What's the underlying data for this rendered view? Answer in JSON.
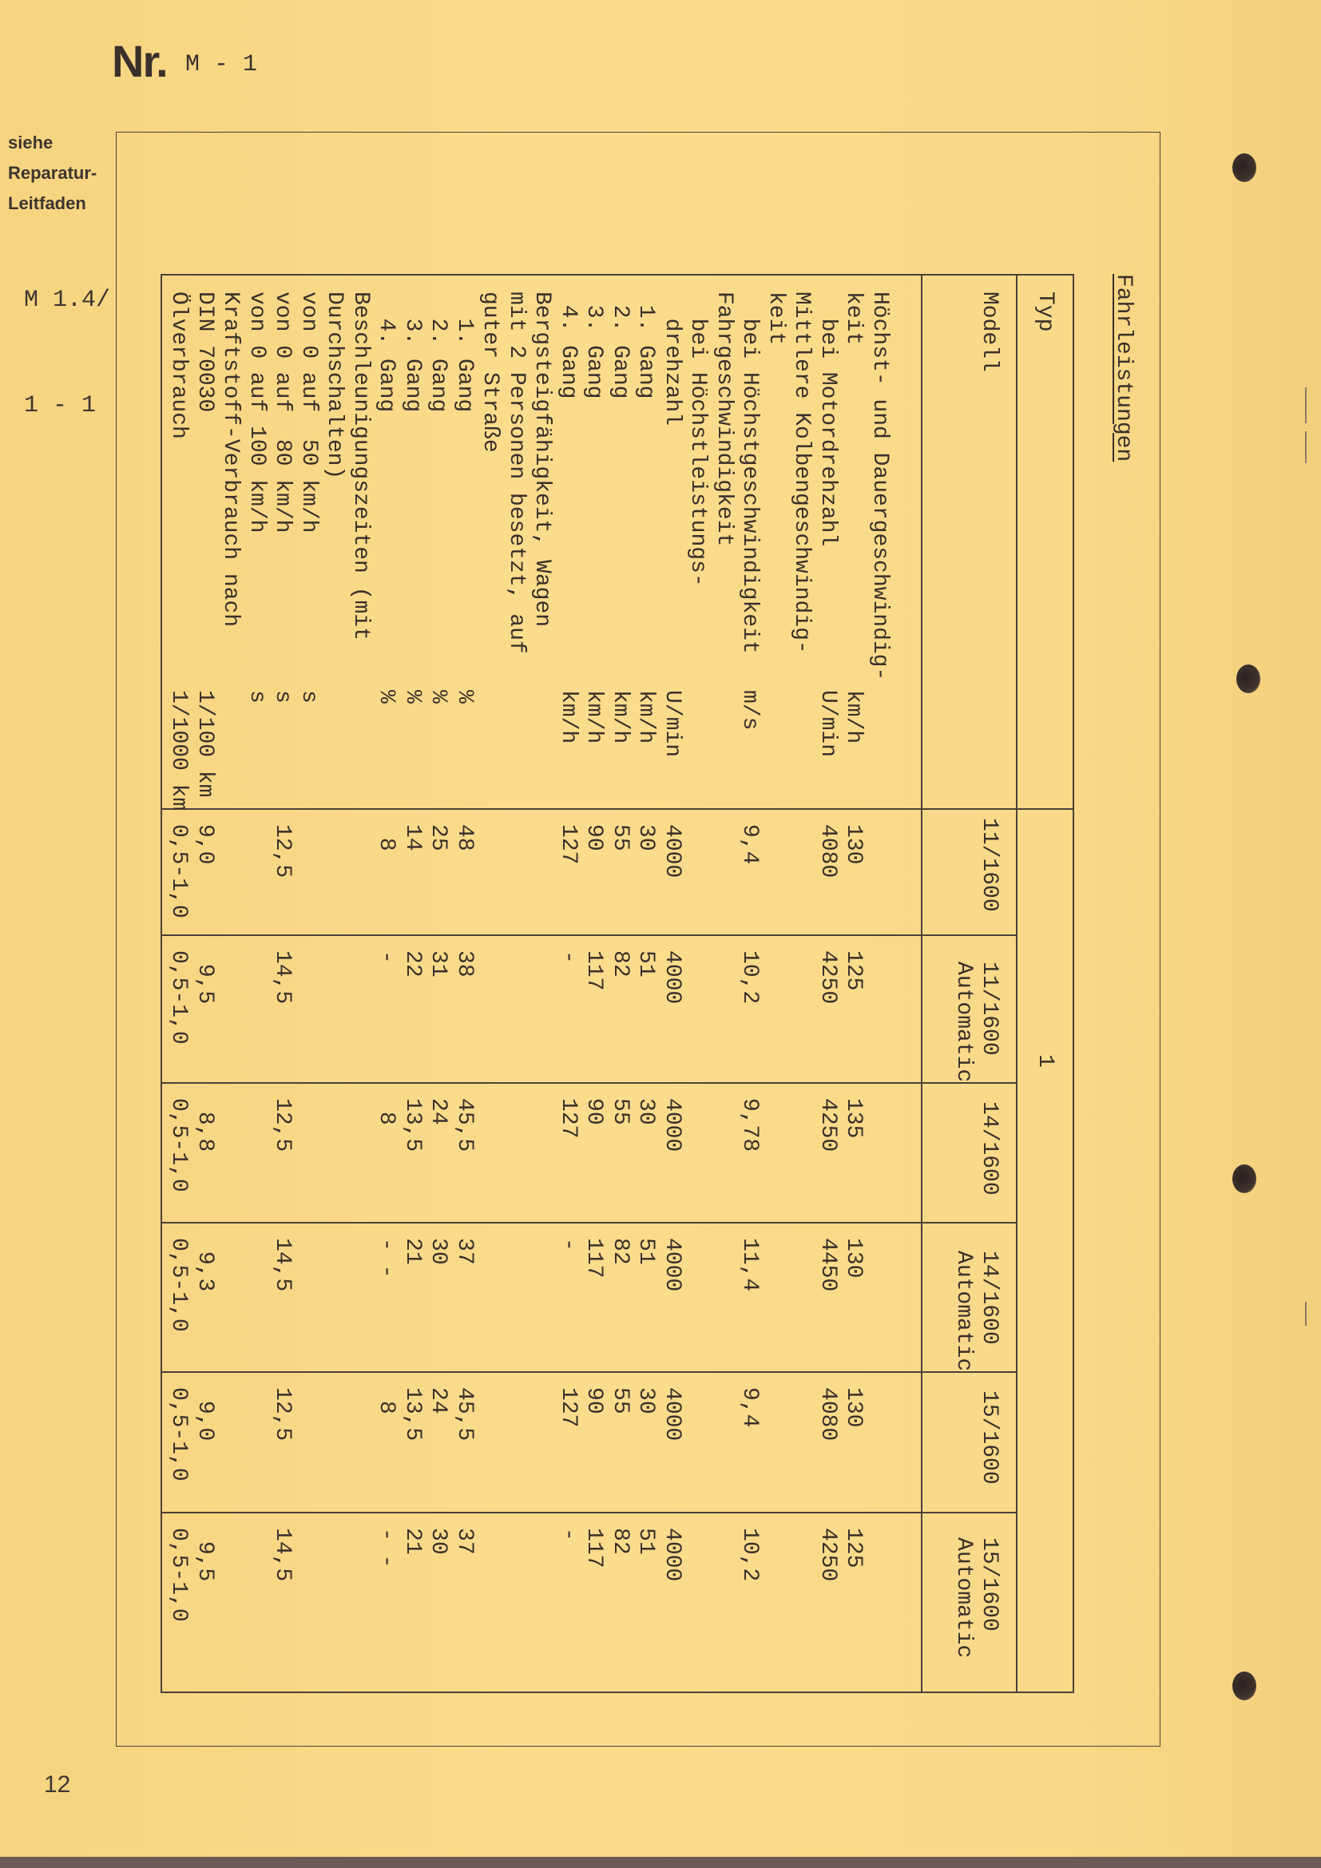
{
  "header": {
    "nr_label": "Nr.",
    "nr_value": "M - 1"
  },
  "side_note": {
    "lines": [
      "siehe",
      "Reparatur-",
      "Leitfaden"
    ],
    "ref_lines": [
      "M 1.4/",
      "1 - 1"
    ]
  },
  "page_number": "12",
  "title": "Fahrleistungen",
  "table": {
    "typ_label": "Typ",
    "typ_value": "1",
    "modell_label": "Modell",
    "models": [
      {
        "line1": "11/1600",
        "line2": ""
      },
      {
        "line1": "11/1600",
        "line2": "Automatic"
      },
      {
        "line1": "14/1600",
        "line2": ""
      },
      {
        "line1": "14/1600",
        "line2": "Automatic"
      },
      {
        "line1": "15/1600",
        "line2": ""
      },
      {
        "line1": "15/1600",
        "line2": "Automatic"
      }
    ],
    "rows": [
      {
        "label": "Höchst- und Dauergeschwindig-",
        "unit": "",
        "values": [
          "",
          "",
          "",
          "",
          "",
          ""
        ]
      },
      {
        "label": "keit",
        "unit": "km/h",
        "values": [
          "130",
          "125",
          "135",
          "130",
          "130",
          "125"
        ]
      },
      {
        "label": "  bei Motordrehzahl",
        "unit": "U/min",
        "values": [
          "4080",
          "4250",
          "4250",
          "4450",
          "4080",
          "4250"
        ]
      },
      {
        "label": "Mittlere Kolbengeschwindig-",
        "unit": "",
        "values": [
          "",
          "",
          "",
          "",
          "",
          ""
        ]
      },
      {
        "label": "keit",
        "unit": "",
        "values": [
          "",
          "",
          "",
          "",
          "",
          ""
        ]
      },
      {
        "label": "  bei Höchstgeschwindigkeit",
        "unit": "m/s",
        "values": [
          "9,4",
          "10,2",
          "9,78",
          "11,4",
          "9,4",
          "10,2"
        ]
      },
      {
        "label": "Fahrgeschwindigkeit",
        "unit": "",
        "values": [
          "",
          "",
          "",
          "",
          "",
          ""
        ]
      },
      {
        "label": "  bei Höchstleistungs-",
        "unit": "",
        "values": [
          "",
          "",
          "",
          "",
          "",
          ""
        ]
      },
      {
        "label": "  drehzahl",
        "unit": "U/min",
        "values": [
          "4000",
          "4000",
          "4000",
          "4000",
          "4000",
          "4000"
        ]
      },
      {
        "label": " 1. Gang",
        "unit": "km/h",
        "values": [
          "30",
          "51",
          "30",
          "51",
          "30",
          "51"
        ]
      },
      {
        "label": " 2. Gang",
        "unit": "km/h",
        "values": [
          "55",
          "82",
          "55",
          "82",
          "55",
          "82"
        ]
      },
      {
        "label": " 3. Gang",
        "unit": "km/h",
        "values": [
          "90",
          "117",
          "90",
          "117",
          "90",
          "117"
        ]
      },
      {
        "label": " 4. Gang",
        "unit": "km/h",
        "values": [
          "127",
          "-",
          "127",
          "-",
          "127",
          "-"
        ]
      },
      {
        "label": "Bergsteigfähigkeit, Wagen",
        "unit": "",
        "values": [
          "",
          "",
          "",
          "",
          "",
          ""
        ]
      },
      {
        "label": "mit 2 Personen besetzt, auf",
        "unit": "",
        "values": [
          "",
          "",
          "",
          "",
          "",
          ""
        ]
      },
      {
        "label": "guter Straße",
        "unit": "",
        "values": [
          "",
          "",
          "",
          "",
          "",
          ""
        ]
      },
      {
        "label": "  1. Gang",
        "unit": "%",
        "values": [
          "48",
          "38",
          "45,5",
          "37",
          "45,5",
          "37"
        ]
      },
      {
        "label": "  2. Gang",
        "unit": "%",
        "values": [
          "25",
          "31",
          "24",
          "30",
          "24",
          "30"
        ]
      },
      {
        "label": "  3. Gang",
        "unit": "%",
        "values": [
          "14",
          "22",
          "13,5",
          "21",
          "13,5",
          "21"
        ]
      },
      {
        "label": "  4. Gang",
        "unit": "%",
        "values": [
          " 8",
          "-",
          " 8",
          "- -",
          " 8",
          "- -"
        ]
      },
      {
        "label": "Beschleunigungszeiten (mit",
        "unit": "",
        "values": [
          "",
          "",
          "",
          "",
          "",
          ""
        ]
      },
      {
        "label": "Durchschalten)",
        "unit": "",
        "values": [
          "",
          "",
          "",
          "",
          "",
          ""
        ]
      },
      {
        "label": "von 0 auf  50 km/h",
        "unit": "s",
        "values": [
          "",
          "",
          "",
          "",
          "",
          ""
        ]
      },
      {
        "label": "von 0 auf  80 km/h",
        "unit": "s",
        "values": [
          "12,5",
          "14,5",
          "12,5",
          "14,5",
          "12,5",
          "14,5"
        ]
      },
      {
        "label": "von 0 auf 100 km/h",
        "unit": "s",
        "values": [
          "",
          "",
          "",
          "",
          "",
          ""
        ]
      },
      {
        "label": "Kraftstoff-Verbrauch nach",
        "unit": "",
        "values": [
          "",
          "",
          "",
          "",
          "",
          ""
        ]
      },
      {
        "label": "DIN 70030",
        "unit": "1/100 km",
        "values": [
          "9,0",
          " 9,5",
          " 8,8",
          " 9,3",
          " 9,0",
          " 9,5"
        ]
      },
      {
        "label": "Ölverbrauch",
        "unit": "1/1000 km",
        "values": [
          "0,5-1,0",
          "0,5-1,0",
          "0,5-1,0",
          "0,5-1,0",
          "0,5-1,0",
          "0,5-1,0"
        ]
      }
    ]
  },
  "colors": {
    "paper": "#f8d886",
    "ink": "#3b2f2a",
    "rule": "#4d4038"
  }
}
